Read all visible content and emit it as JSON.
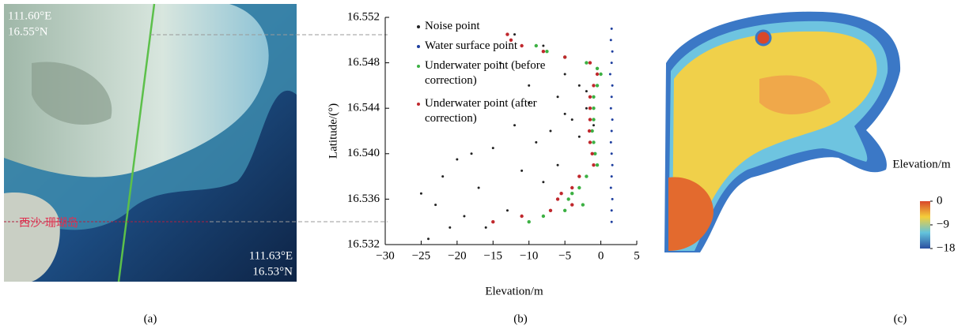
{
  "panels": {
    "a": {
      "corner_top": [
        "111.60°E",
        "16.55°N"
      ],
      "corner_bottom": [
        "111.63°E",
        "16.53°N"
      ],
      "place": "西沙-珊瑚岛"
    },
    "captions": [
      "(a)",
      "(b)",
      "(c)"
    ]
  },
  "chart_data": [
    {
      "type": "scatter",
      "xlabel": "Elevation/m",
      "ylabel": "Latitude/(°)",
      "xlim": [
        -30,
        5
      ],
      "ylim": [
        16.532,
        16.552
      ],
      "xticks": [
        {
          "value": -30,
          "label": "−30"
        },
        {
          "value": -25,
          "label": "−25"
        },
        {
          "value": -20,
          "label": "−20"
        },
        {
          "value": -15,
          "label": "−15"
        },
        {
          "value": -10,
          "label": "−10"
        },
        {
          "value": -5,
          "label": "−5"
        },
        0,
        5
      ],
      "yticks": [
        16.532,
        16.536,
        {
          "value": 16.54,
          "label": "16.540"
        },
        16.544,
        16.548,
        16.552
      ],
      "series": [
        {
          "name": "Noise point",
          "color": "#222222",
          "x": [
            -12,
            -14,
            -8,
            -5,
            -3,
            -6,
            -10,
            -2,
            -4,
            -7,
            -9,
            -15,
            -18,
            -20,
            -22,
            -25,
            -23,
            -17,
            -11,
            -6,
            -3,
            -1,
            -8,
            -13,
            -19,
            -16,
            -5,
            -2,
            -10,
            -24,
            -21,
            -12
          ],
          "values": [
            16.5505,
            16.548,
            16.5495,
            16.547,
            16.546,
            16.545,
            16.5445,
            16.544,
            16.543,
            16.542,
            16.541,
            16.5405,
            16.54,
            16.5395,
            16.538,
            16.5365,
            16.5355,
            16.537,
            16.5385,
            16.539,
            16.5415,
            16.5425,
            16.5375,
            16.535,
            16.5345,
            16.5335,
            16.5435,
            16.5455,
            16.546,
            16.5325,
            16.5335,
            16.5425
          ]
        },
        {
          "name": "Water surface point",
          "color": "#1f3f9f",
          "x": [
            1.5,
            1.4,
            1.6,
            1.5,
            1.3,
            1.6,
            1.5,
            1.4,
            1.6,
            1.5,
            1.4,
            1.5,
            1.6,
            1.5,
            1.4,
            1.6,
            1.5,
            1.5
          ],
          "values": [
            16.551,
            16.55,
            16.549,
            16.548,
            16.547,
            16.546,
            16.545,
            16.544,
            16.543,
            16.542,
            16.541,
            16.54,
            16.539,
            16.538,
            16.537,
            16.536,
            16.535,
            16.534
          ]
        },
        {
          "name": "Underwater point (before correction)",
          "color": "#3cb043",
          "x": [
            -9,
            -7.5,
            -5,
            -2,
            -0.5,
            0,
            -0.5,
            -1,
            -1,
            -1,
            -1.2,
            -1,
            -0.8,
            -0.5,
            -2,
            -3,
            -4,
            -4.5,
            -2.5,
            -5,
            -8,
            -10
          ],
          "values": [
            16.5495,
            16.549,
            16.5485,
            16.548,
            16.5475,
            16.547,
            16.546,
            16.545,
            16.544,
            16.543,
            16.542,
            16.541,
            16.54,
            16.539,
            16.538,
            16.537,
            16.5365,
            16.536,
            16.5355,
            16.535,
            16.5345,
            16.534
          ]
        },
        {
          "name": "Underwater point (after correction)",
          "color": "#c0282d",
          "x": [
            -13,
            -12.5,
            -11,
            -8,
            -5,
            -1.5,
            -0.5,
            -1,
            -1.5,
            -1.5,
            -1.5,
            -1.6,
            -1.5,
            -1.2,
            -1,
            -3,
            -4,
            -5.5,
            -6,
            -4,
            -7,
            -11,
            -15
          ],
          "values": [
            16.5505,
            16.55,
            16.5495,
            16.549,
            16.5485,
            16.548,
            16.547,
            16.546,
            16.545,
            16.544,
            16.543,
            16.542,
            16.541,
            16.54,
            16.539,
            16.538,
            16.537,
            16.5365,
            16.536,
            16.5355,
            16.535,
            16.5345,
            16.534
          ]
        }
      ]
    },
    {
      "type": "colorbar",
      "title": "Elevation/m",
      "colors": [
        "#d9472b",
        "#f4cf3a",
        "#62c3dc",
        "#2b4f9f"
      ],
      "ylim": [
        -18,
        0
      ],
      "yticks": [
        0,
        {
          "value": -9,
          "label": "−9"
        },
        {
          "value": -18,
          "label": "−18"
        }
      ]
    }
  ]
}
